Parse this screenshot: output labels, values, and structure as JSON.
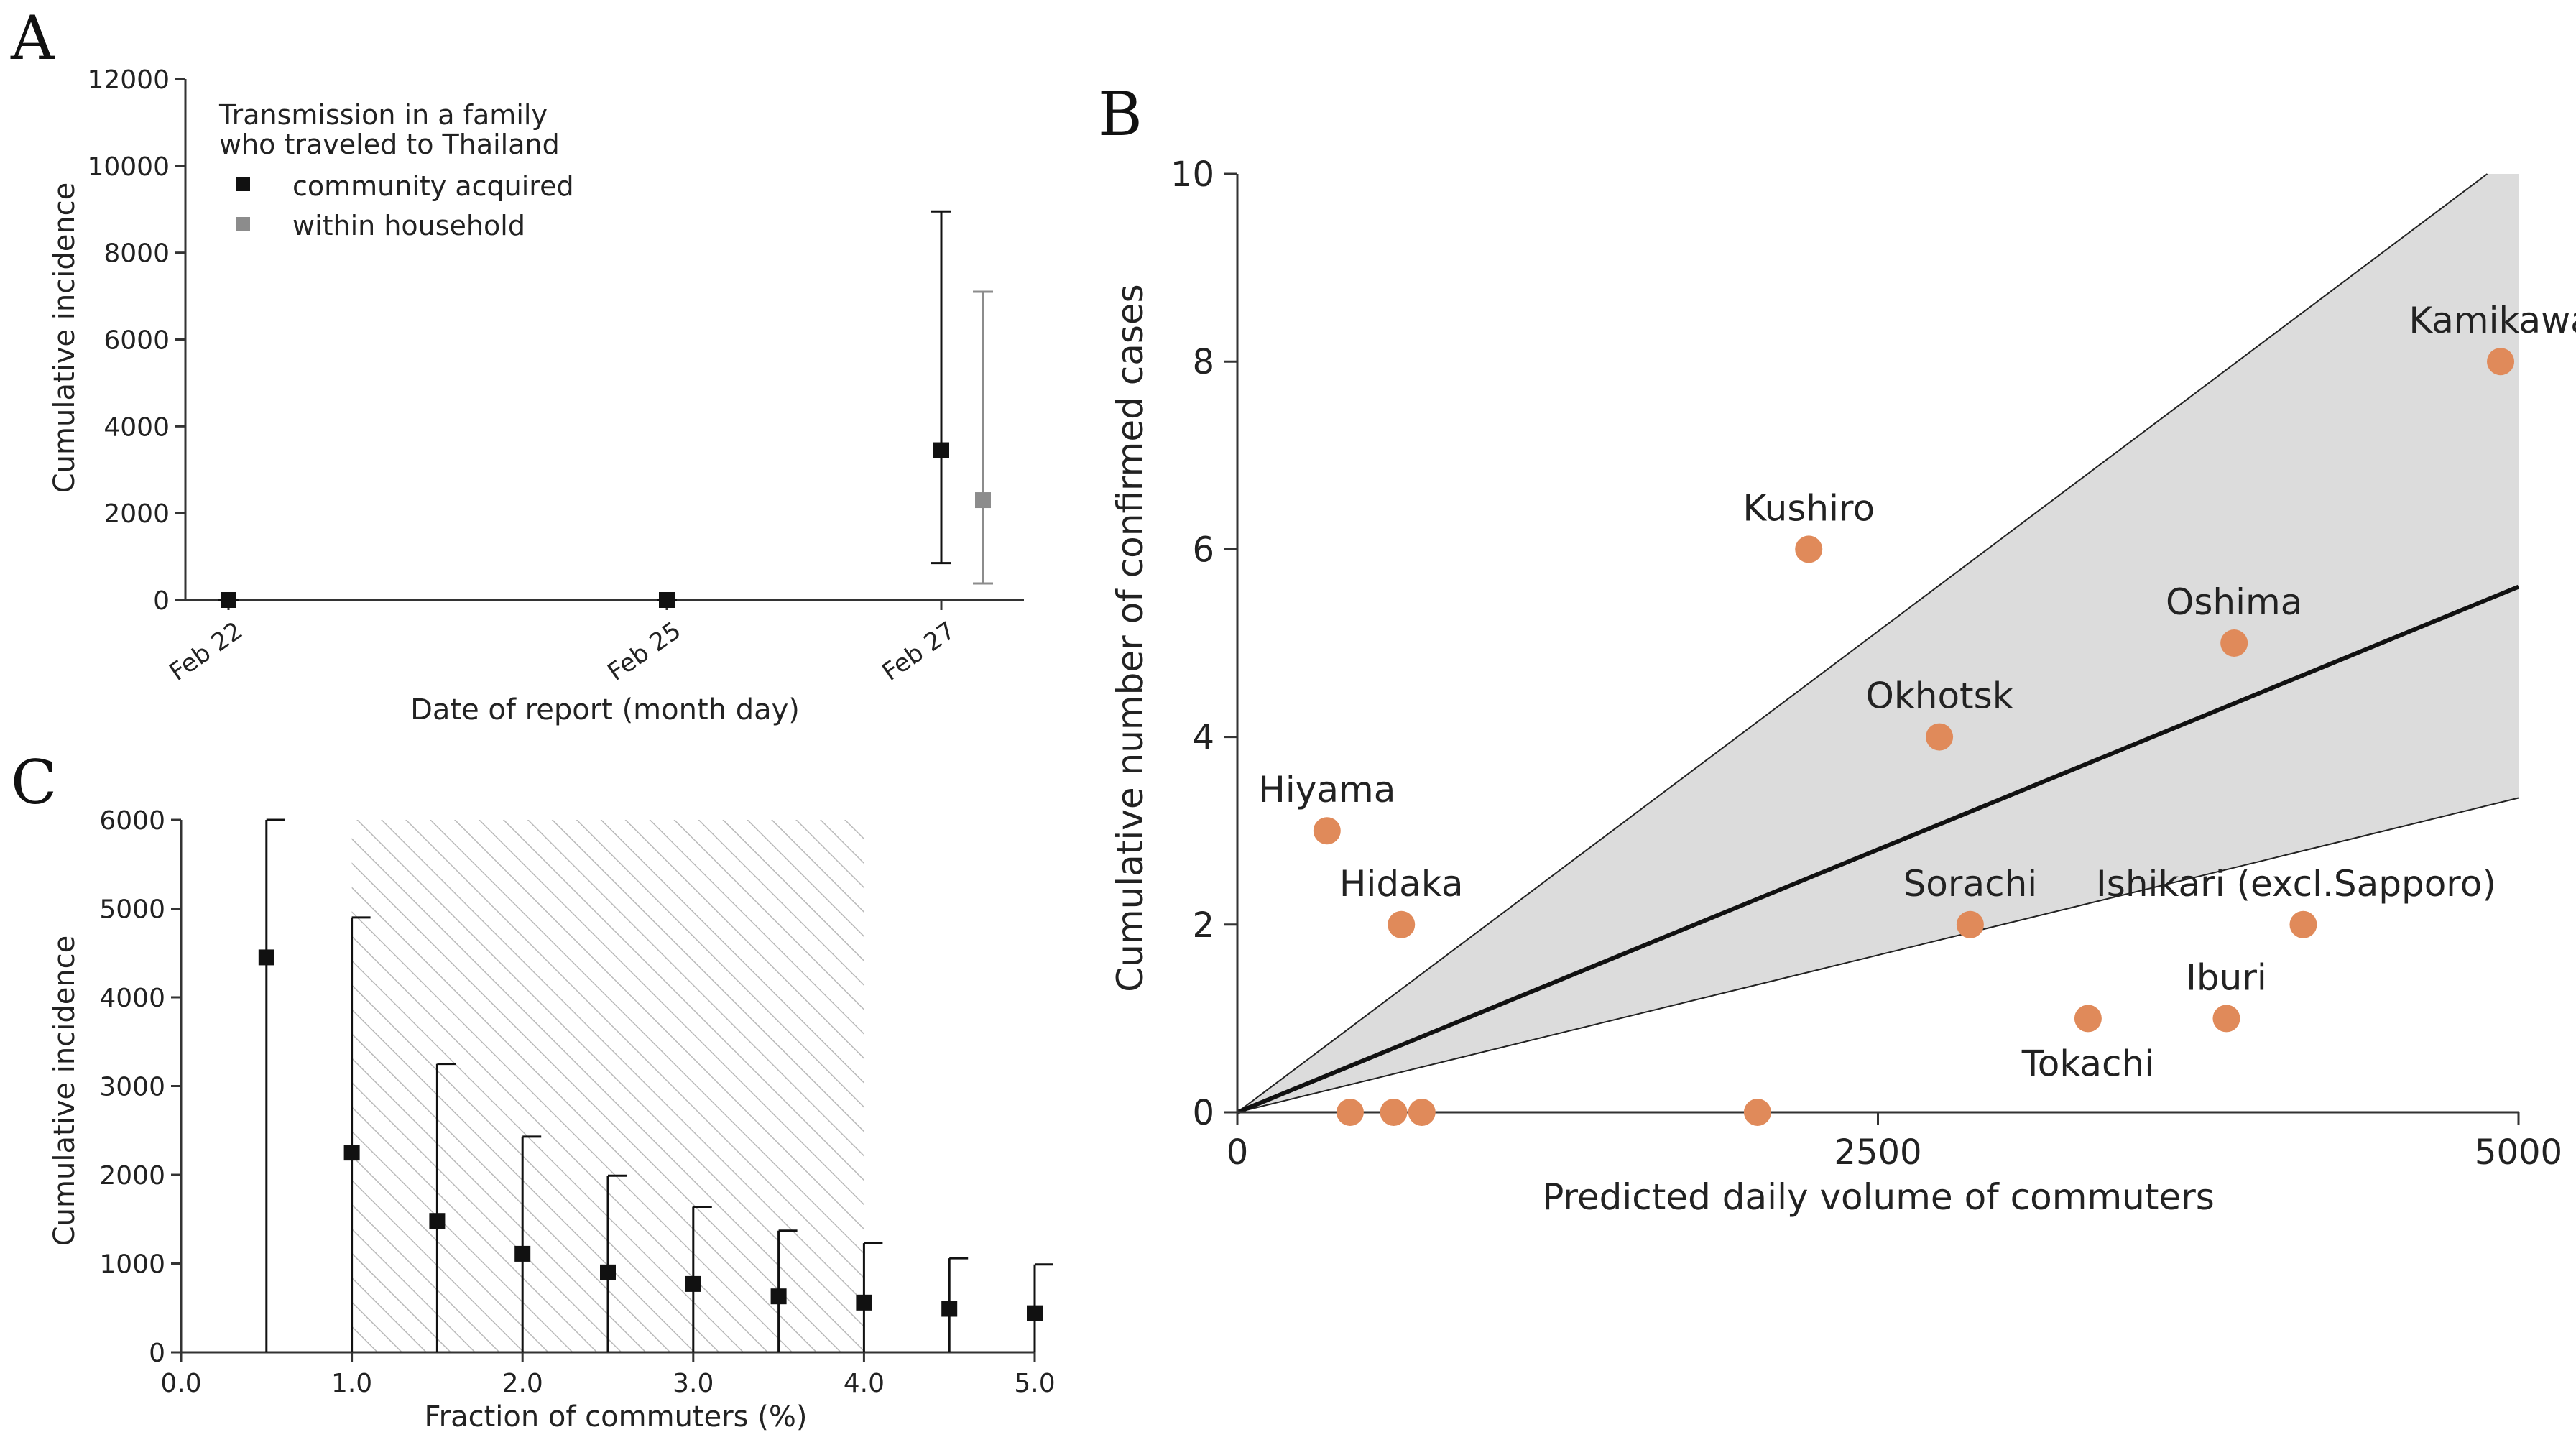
{
  "chart_data": [
    {
      "id": "A",
      "panel_label": "A",
      "type": "scatter",
      "subtype": "point-with-error-bars",
      "categories": [
        "Feb 22",
        "Feb 25",
        "Feb 27"
      ],
      "ylim": [
        0,
        12000
      ],
      "yticks": [
        "0",
        "2000",
        "4000",
        "6000",
        "8000",
        "10000",
        "12000"
      ],
      "xlabel": "Date of report (month day)",
      "ylabel": "Cumulative incidence",
      "legend": {
        "title_line1": "Transmission in a family",
        "title_line2": "who traveled to Thailand",
        "position": "top-left",
        "entries": [
          "community acquired",
          "within household"
        ]
      },
      "series": [
        {
          "name": "community acquired",
          "color": "#111111",
          "points": [
            {
              "category": "Feb 22",
              "value": 0,
              "lower": 0,
              "upper": 0
            },
            {
              "category": "Feb 25",
              "value": 0,
              "lower": 0,
              "upper": 0
            },
            {
              "category": "Feb 27",
              "value": 3450,
              "lower": 850,
              "upper": 8950
            }
          ]
        },
        {
          "name": "within household",
          "color": "#8c8c8c",
          "points": [
            {
              "category": "Feb 27",
              "value": 2300,
              "lower": 380,
              "upper": 7100
            }
          ]
        }
      ]
    },
    {
      "id": "B",
      "panel_label": "B",
      "type": "scatter",
      "xlim": [
        0,
        5000
      ],
      "ylim": [
        0,
        10
      ],
      "xticks": [
        "0",
        "2500",
        "5000"
      ],
      "yticks": [
        "0",
        "2",
        "4",
        "6",
        "8",
        "10"
      ],
      "xlabel": "Predicted daily volume of commuters",
      "ylabel": "Cumulative number of confirmed cases",
      "point_color": "#e08a5a",
      "fit": {
        "slope": 0.00112,
        "band_upper_slope": 0.00205,
        "band_lower_slope": 0.00067
      },
      "points": [
        {
          "label": "Kamikawa",
          "x": 4930,
          "y": 8
        },
        {
          "label": "Kushiro",
          "x": 2230,
          "y": 6
        },
        {
          "label": "Oshima",
          "x": 3890,
          "y": 5
        },
        {
          "label": "Okhotsk",
          "x": 2740,
          "y": 4
        },
        {
          "label": "Hiyama",
          "x": 350,
          "y": 3
        },
        {
          "label": "Hidaka",
          "x": 640,
          "y": 2
        },
        {
          "label": "Sorachi",
          "x": 2860,
          "y": 2
        },
        {
          "label": "Ishikari (excl.Sapporo)",
          "x": 4160,
          "y": 2
        },
        {
          "label": "Iburi",
          "x": 3860,
          "y": 1
        },
        {
          "label": "Tokachi",
          "x": 3320,
          "y": 1
        },
        {
          "label": "",
          "x": 440,
          "y": 0
        },
        {
          "label": "",
          "x": 610,
          "y": 0
        },
        {
          "label": "",
          "x": 720,
          "y": 0
        },
        {
          "label": "",
          "x": 2030,
          "y": 0
        }
      ]
    },
    {
      "id": "C",
      "panel_label": "C",
      "type": "scatter",
      "subtype": "point-with-error-bars",
      "xlim": [
        0,
        5
      ],
      "ylim": [
        0,
        6000
      ],
      "xticks": [
        "0.0",
        "1.0",
        "2.0",
        "3.0",
        "4.0",
        "5.0"
      ],
      "yticks": [
        "0",
        "1000",
        "2000",
        "3000",
        "4000",
        "5000",
        "6000"
      ],
      "xlabel": "Fraction of commuters (%)",
      "ylabel": "Cumulative incidence",
      "shaded_region": {
        "x_from": 1.0,
        "x_to": 4.0,
        "style": "hatched"
      },
      "points": [
        {
          "x": 0.5,
          "value": 4450,
          "lower": 0,
          "upper": 6000
        },
        {
          "x": 1.0,
          "value": 2250,
          "lower": 0,
          "upper": 4900
        },
        {
          "x": 1.5,
          "value": 1480,
          "lower": 0,
          "upper": 3250
        },
        {
          "x": 2.0,
          "value": 1110,
          "lower": 0,
          "upper": 2430
        },
        {
          "x": 2.5,
          "value": 900,
          "lower": 0,
          "upper": 1990
        },
        {
          "x": 3.0,
          "value": 770,
          "lower": 0,
          "upper": 1640
        },
        {
          "x": 3.5,
          "value": 630,
          "lower": 0,
          "upper": 1370
        },
        {
          "x": 4.0,
          "value": 560,
          "lower": 0,
          "upper": 1230
        },
        {
          "x": 4.5,
          "value": 490,
          "lower": 0,
          "upper": 1060
        },
        {
          "x": 5.0,
          "value": 440,
          "lower": 0,
          "upper": 990
        }
      ]
    }
  ]
}
